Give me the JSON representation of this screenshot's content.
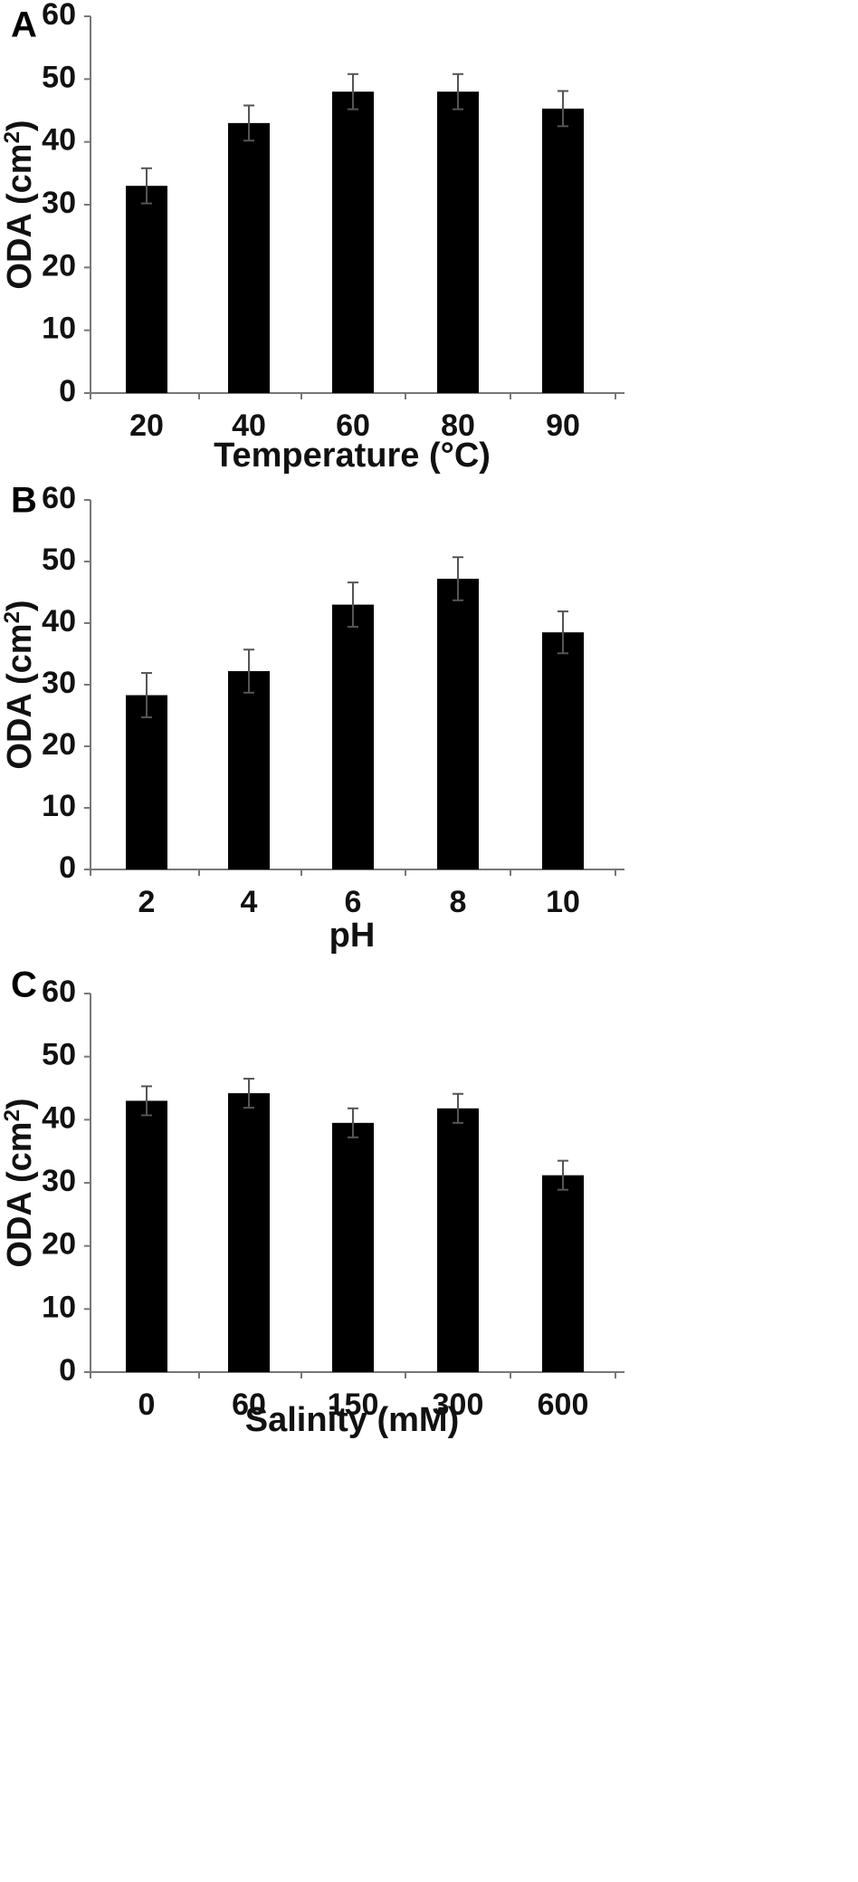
{
  "chart_data": [
    {
      "type": "bar",
      "panel": "A",
      "categories": [
        "20",
        "40",
        "60",
        "80",
        "90"
      ],
      "values": [
        33,
        43,
        48,
        48,
        45.3
      ],
      "errors": [
        2.8,
        2.8,
        2.8,
        2.8,
        2.8
      ],
      "title": "",
      "xlabel": "Temperature (°C)",
      "ylabel_main": "ODA (cm",
      "ylabel_sup": "2",
      "ylabel_close": ")",
      "ylim": [
        0,
        60
      ],
      "yticks": [
        "0",
        "10",
        "20",
        "30",
        "40",
        "50",
        "60"
      ],
      "grid": false,
      "legend": "none",
      "bar_color": "#000000",
      "error_color": "#555555"
    },
    {
      "type": "bar",
      "panel": "B",
      "categories": [
        "2",
        "4",
        "6",
        "8",
        "10"
      ],
      "values": [
        28.3,
        32.2,
        43,
        47.2,
        38.5
      ],
      "errors": [
        3.6,
        3.5,
        3.6,
        3.5,
        3.4
      ],
      "title": "",
      "xlabel": "pH",
      "ylabel_main": "ODA (cm",
      "ylabel_sup": "2",
      "ylabel_close": ")",
      "ylim": [
        0,
        60
      ],
      "yticks": [
        "0",
        "10",
        "20",
        "30",
        "40",
        "50",
        "60"
      ],
      "grid": false,
      "legend": "none",
      "bar_color": "#000000",
      "error_color": "#555555"
    },
    {
      "type": "bar",
      "panel": "C",
      "categories": [
        "0",
        "60",
        "150",
        "300",
        "600"
      ],
      "values": [
        43,
        44.2,
        39.5,
        41.8,
        31.2
      ],
      "errors": [
        2.3,
        2.3,
        2.3,
        2.3,
        2.3
      ],
      "title": "",
      "xlabel": "Salinity (mM)",
      "ylabel_main": "ODA (cm",
      "ylabel_sup": "2",
      "ylabel_close": ")",
      "ylim": [
        0,
        60
      ],
      "yticks": [
        "0",
        "10",
        "20",
        "30",
        "40",
        "50",
        "60"
      ],
      "grid": false,
      "legend": "none",
      "bar_color": "#000000",
      "error_color": "#555555"
    }
  ]
}
